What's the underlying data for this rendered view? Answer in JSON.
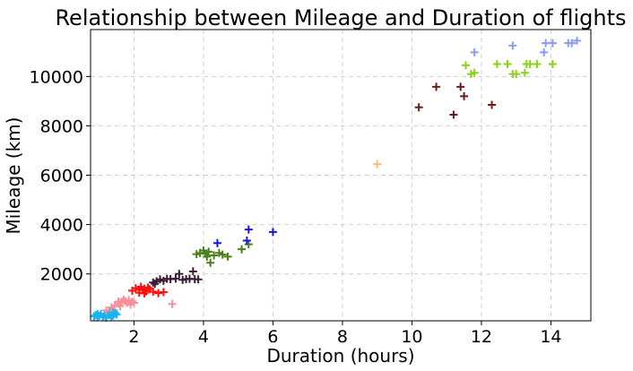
{
  "chart_data": {
    "type": "scatter",
    "title": "Relationship between Mileage and Duration of flights",
    "xlabel": "Duration (hours)",
    "ylabel": "Mileage (km)",
    "xlim": [
      0.75,
      15.15
    ],
    "ylim": [
      100,
      11900
    ],
    "x_ticks": [
      2,
      4,
      6,
      8,
      10,
      12,
      14
    ],
    "y_ticks": [
      2000,
      4000,
      6000,
      8000,
      10000
    ],
    "grid": true,
    "legend": "none",
    "marker": "plus",
    "series": [
      {
        "color": "#1ab2f0",
        "points": [
          [
            0.85,
            280
          ],
          [
            0.9,
            330
          ],
          [
            0.95,
            250
          ],
          [
            1.0,
            300
          ],
          [
            1.05,
            380
          ],
          [
            1.1,
            260
          ],
          [
            1.15,
            320
          ],
          [
            1.2,
            290
          ],
          [
            1.25,
            400
          ],
          [
            1.3,
            340
          ],
          [
            1.35,
            260
          ],
          [
            1.4,
            310
          ],
          [
            1.45,
            420
          ],
          [
            1.5,
            360
          ],
          [
            1.2,
            220
          ],
          [
            0.95,
            380
          ],
          [
            1.3,
            480
          ],
          [
            1.4,
            520
          ]
        ]
      },
      {
        "color": "#f8909a",
        "points": [
          [
            1.2,
            520
          ],
          [
            1.35,
            640
          ],
          [
            1.45,
            720
          ],
          [
            1.55,
            800
          ],
          [
            1.65,
            870
          ],
          [
            1.75,
            900
          ],
          [
            1.8,
            820
          ],
          [
            1.85,
            940
          ],
          [
            1.9,
            760
          ],
          [
            1.95,
            880
          ],
          [
            1.55,
            880
          ],
          [
            1.7,
            960
          ],
          [
            2.0,
            820
          ],
          [
            1.6,
            700
          ],
          [
            3.1,
            780
          ]
        ]
      },
      {
        "color": "#ff0e0e",
        "points": [
          [
            1.95,
            1320
          ],
          [
            2.05,
            1420
          ],
          [
            2.15,
            1240
          ],
          [
            2.2,
            1480
          ],
          [
            2.25,
            1350
          ],
          [
            2.3,
            1210
          ],
          [
            2.35,
            1300
          ],
          [
            2.4,
            1450
          ],
          [
            2.45,
            1380
          ],
          [
            2.55,
            1280
          ],
          [
            2.7,
            1220
          ],
          [
            2.85,
            1260
          ],
          [
            2.15,
            1360
          ],
          [
            2.3,
            1400
          ]
        ]
      },
      {
        "color": "#3a1c35",
        "points": [
          [
            2.55,
            1650
          ],
          [
            2.65,
            1700
          ],
          [
            2.75,
            1780
          ],
          [
            2.85,
            1720
          ],
          [
            2.95,
            1800
          ],
          [
            3.05,
            1790
          ],
          [
            3.2,
            1810
          ],
          [
            3.3,
            2000
          ],
          [
            3.4,
            1760
          ],
          [
            3.5,
            1790
          ],
          [
            3.6,
            1800
          ],
          [
            3.7,
            2100
          ],
          [
            3.75,
            1790
          ],
          [
            3.85,
            1780
          ],
          [
            2.6,
            1600
          ]
        ]
      },
      {
        "color": "#4a7f1c",
        "points": [
          [
            3.8,
            2800
          ],
          [
            3.9,
            2850
          ],
          [
            4.0,
            2950
          ],
          [
            4.05,
            2820
          ],
          [
            4.1,
            2700
          ],
          [
            4.15,
            2900
          ],
          [
            4.2,
            2450
          ],
          [
            4.3,
            2750
          ],
          [
            4.45,
            2850
          ],
          [
            4.55,
            2780
          ],
          [
            4.7,
            2700
          ],
          [
            5.1,
            3000
          ],
          [
            5.3,
            3200
          ]
        ]
      },
      {
        "color": "#1616e6",
        "points": [
          [
            4.4,
            3250
          ],
          [
            5.25,
            3350
          ],
          [
            5.3,
            3800
          ],
          [
            6.0,
            3700
          ]
        ]
      },
      {
        "color": "#fbb879",
        "points": [
          [
            9.0,
            6450
          ]
        ]
      },
      {
        "color": "#6b1c1c",
        "points": [
          [
            10.2,
            8750
          ],
          [
            10.7,
            9580
          ],
          [
            11.2,
            8450
          ],
          [
            11.4,
            9580
          ],
          [
            11.5,
            9200
          ],
          [
            12.3,
            8850
          ]
        ]
      },
      {
        "color": "#88d21a",
        "points": [
          [
            11.55,
            10450
          ],
          [
            11.7,
            10100
          ],
          [
            11.8,
            10150
          ],
          [
            12.45,
            10500
          ],
          [
            12.75,
            10500
          ],
          [
            12.9,
            10100
          ],
          [
            13.0,
            10100
          ],
          [
            13.25,
            10150
          ],
          [
            13.3,
            10500
          ],
          [
            13.4,
            10500
          ],
          [
            13.6,
            10500
          ],
          [
            14.05,
            10500
          ]
        ]
      },
      {
        "color": "#8a9af0",
        "points": [
          [
            11.8,
            10980
          ],
          [
            12.9,
            11250
          ],
          [
            13.8,
            10980
          ],
          [
            13.85,
            11350
          ],
          [
            14.05,
            11350
          ],
          [
            14.5,
            11350
          ],
          [
            14.6,
            11350
          ],
          [
            14.75,
            11450
          ]
        ]
      }
    ]
  }
}
